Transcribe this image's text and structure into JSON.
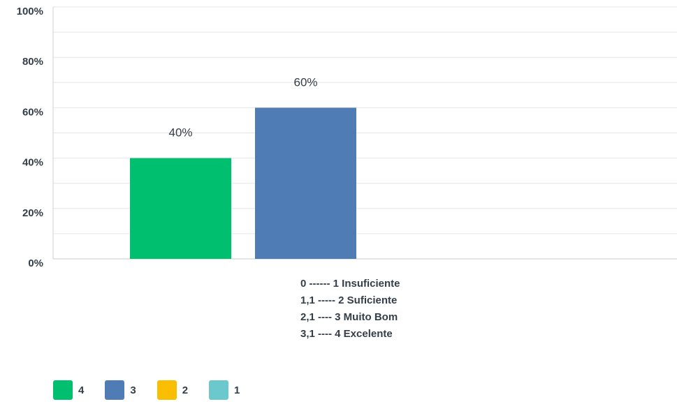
{
  "chart_data": {
    "type": "bar",
    "x_category_label": [
      "0 ------ 1 Insuficiente",
      "1,1 ----- 2 Suficiente",
      "2,1 ---- 3 Muito Bom",
      "3,1 ---- 4 Excelente"
    ],
    "series": [
      {
        "name": "4",
        "color": "#00bf6f",
        "value": 40,
        "label": "40%"
      },
      {
        "name": "3",
        "color": "#507cb6",
        "value": 60,
        "label": "60%"
      },
      {
        "name": "2",
        "color": "#f9be00",
        "value": 0,
        "label": ""
      },
      {
        "name": "1",
        "color": "#6bc8cd",
        "value": 0,
        "label": ""
      }
    ],
    "ylim": [
      0,
      100
    ],
    "yticks": [
      "0%",
      "20%",
      "40%",
      "60%",
      "80%",
      "100%"
    ],
    "ytick_values": [
      0,
      20,
      40,
      60,
      80,
      100
    ],
    "grid": true,
    "legend_position": "bottom-left"
  }
}
